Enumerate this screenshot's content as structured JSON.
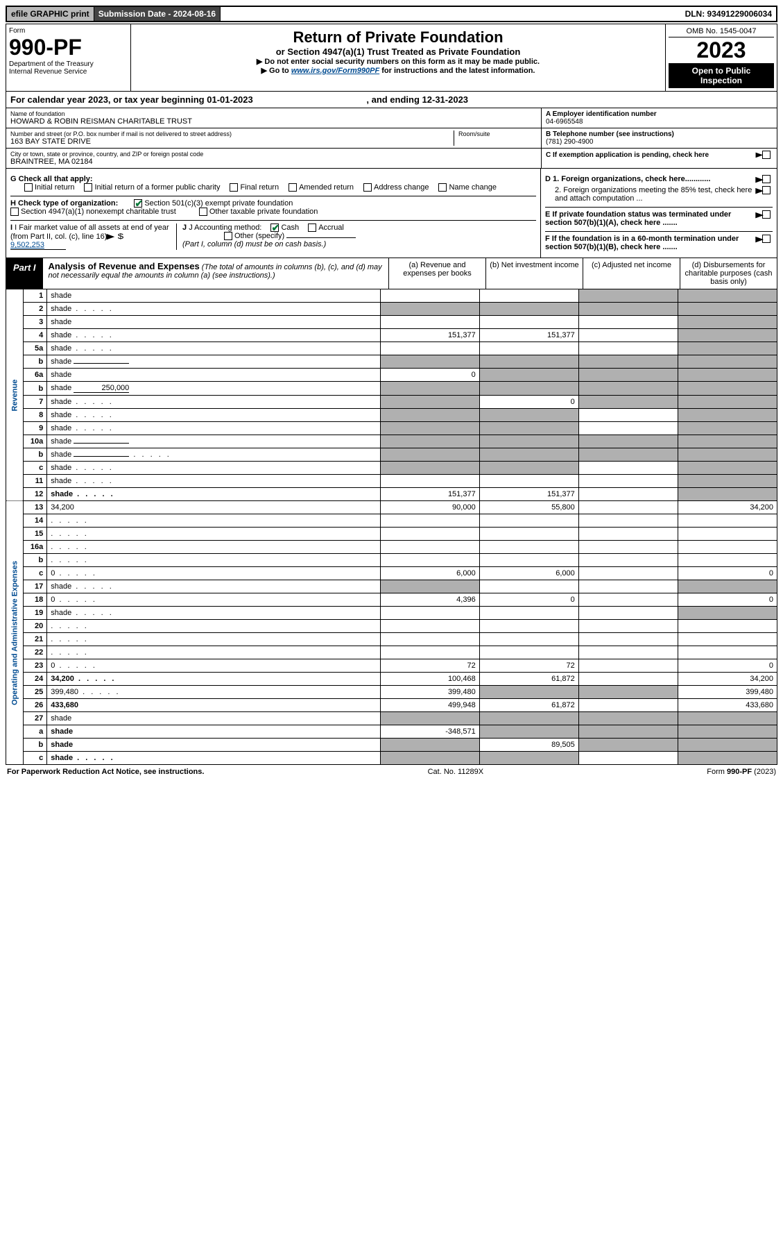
{
  "topbar": {
    "efile": "efile GRAPHIC print",
    "submission": "Submission Date - 2024-08-16",
    "dln": "DLN: 93491229006034"
  },
  "header": {
    "form_word": "Form",
    "form_num": "990-PF",
    "dept": "Department of the Treasury",
    "irs": "Internal Revenue Service",
    "title": "Return of Private Foundation",
    "subtitle": "or Section 4947(a)(1) Trust Treated as Private Foundation",
    "instr1": "▶ Do not enter social security numbers on this form as it may be made public.",
    "instr2_pre": "▶ Go to ",
    "instr2_link": "www.irs.gov/Form990PF",
    "instr2_post": " for instructions and the latest information.",
    "omb": "OMB No. 1545-0047",
    "year": "2023",
    "open": "Open to Public Inspection"
  },
  "cal_year": {
    "pre": "For calendar year 2023, or tax year beginning ",
    "begin": "01-01-2023",
    "mid": " , and ending ",
    "end": "12-31-2023"
  },
  "ident": {
    "name_label": "Name of foundation",
    "name": "HOWARD & ROBIN REISMAN CHARITABLE TRUST",
    "street_label": "Number and street (or P.O. box number if mail is not delivered to street address)",
    "street": "163 BAY STATE DRIVE",
    "room_label": "Room/suite",
    "city_label": "City or town, state or province, country, and ZIP or foreign postal code",
    "city": "BRAINTREE, MA  02184",
    "a_label": "A Employer identification number",
    "a_val": "04-6965548",
    "b_label": "B Telephone number (see instructions)",
    "b_val": "(781) 290-4900",
    "c_label": "C If exemption application is pending, check here"
  },
  "checks": {
    "g_label": "G Check all that apply:",
    "g_opts": [
      "Initial return",
      "Initial return of a former public charity",
      "Final return",
      "Amended return",
      "Address change",
      "Name change"
    ],
    "h_label": "H Check type of organization:",
    "h1": "Section 501(c)(3) exempt private foundation",
    "h2": "Section 4947(a)(1) nonexempt charitable trust",
    "h3": "Other taxable private foundation",
    "i_label": "I Fair market value of all assets at end of year (from Part II, col. (c), line 16)",
    "i_val": "9,502,253",
    "j_label": "J Accounting method:",
    "j_cash": "Cash",
    "j_accrual": "Accrual",
    "j_other": "Other (specify)",
    "j_note": "(Part I, column (d) must be on cash basis.)",
    "d1": "D 1. Foreign organizations, check here............",
    "d2": "2. Foreign organizations meeting the 85% test, check here and attach computation ...",
    "e": "E  If private foundation status was terminated under section 507(b)(1)(A), check here .......",
    "f": "F  If the foundation is in a 60-month termination under section 507(b)(1)(B), check here .......",
    "arrow_dollar": "▶ $"
  },
  "part1": {
    "badge": "Part I",
    "title": "Analysis of Revenue and Expenses",
    "title_note": " (The total of amounts in columns (b), (c), and (d) may not necessarily equal the amounts in column (a) (see instructions).)",
    "col_a": "(a)  Revenue and expenses per books",
    "col_b": "(b)  Net investment income",
    "col_c": "(c)  Adjusted net income",
    "col_d": "(d)  Disbursements for charitable purposes (cash basis only)",
    "side_rev": "Revenue",
    "side_exp": "Operating and Administrative Expenses"
  },
  "lines": [
    {
      "n": "1",
      "d": "shade",
      "a": "",
      "b": "",
      "c": "shade"
    },
    {
      "n": "2",
      "d": "shade",
      "a": "shade",
      "b": "shade",
      "c": "shade",
      "dots": true
    },
    {
      "n": "3",
      "d": "shade",
      "a": "",
      "b": "",
      "c": ""
    },
    {
      "n": "4",
      "d": "shade",
      "a": "151,377",
      "b": "151,377",
      "c": "",
      "dots": true
    },
    {
      "n": "5a",
      "d": "shade",
      "a": "",
      "b": "",
      "c": "",
      "dots": true
    },
    {
      "n": "b",
      "d": "shade",
      "a": "shade",
      "b": "shade",
      "c": "shade",
      "inline": ""
    },
    {
      "n": "6a",
      "d": "shade",
      "a": "0",
      "b": "shade",
      "c": "shade"
    },
    {
      "n": "b",
      "d": "shade",
      "a": "shade",
      "b": "shade",
      "c": "shade",
      "inline": "250,000"
    },
    {
      "n": "7",
      "d": "shade",
      "a": "shade",
      "b": "0",
      "c": "shade",
      "dots": true
    },
    {
      "n": "8",
      "d": "shade",
      "a": "shade",
      "b": "shade",
      "c": "",
      "dots": true
    },
    {
      "n": "9",
      "d": "shade",
      "a": "shade",
      "b": "shade",
      "c": "",
      "dots": true
    },
    {
      "n": "10a",
      "d": "shade",
      "a": "shade",
      "b": "shade",
      "c": "shade",
      "inline": ""
    },
    {
      "n": "b",
      "d": "shade",
      "a": "shade",
      "b": "shade",
      "c": "shade",
      "inline": "",
      "dots": true
    },
    {
      "n": "c",
      "d": "shade",
      "a": "shade",
      "b": "shade",
      "c": "",
      "dots": true
    },
    {
      "n": "11",
      "d": "shade",
      "a": "",
      "b": "",
      "c": "",
      "dots": true
    },
    {
      "n": "12",
      "d": "shade",
      "a": "151,377",
      "b": "151,377",
      "c": "",
      "bold": true,
      "dots": true
    },
    {
      "n": "13",
      "d": "34,200",
      "a": "90,000",
      "b": "55,800",
      "c": ""
    },
    {
      "n": "14",
      "d": "",
      "a": "",
      "b": "",
      "c": "",
      "dots": true
    },
    {
      "n": "15",
      "d": "",
      "a": "",
      "b": "",
      "c": "",
      "dots": true
    },
    {
      "n": "16a",
      "d": "",
      "a": "",
      "b": "",
      "c": "",
      "dots": true
    },
    {
      "n": "b",
      "d": "",
      "a": "",
      "b": "",
      "c": "",
      "dots": true
    },
    {
      "n": "c",
      "d": "0",
      "a": "6,000",
      "b": "6,000",
      "c": "",
      "dots": true
    },
    {
      "n": "17",
      "d": "shade",
      "a": "shade",
      "b": "",
      "c": "",
      "dots": true
    },
    {
      "n": "18",
      "d": "0",
      "a": "4,396",
      "b": "0",
      "c": "",
      "dots": true
    },
    {
      "n": "19",
      "d": "shade",
      "a": "",
      "b": "",
      "c": "",
      "dots": true
    },
    {
      "n": "20",
      "d": "",
      "a": "",
      "b": "",
      "c": "",
      "dots": true
    },
    {
      "n": "21",
      "d": "",
      "a": "",
      "b": "",
      "c": "",
      "dots": true
    },
    {
      "n": "22",
      "d": "",
      "a": "",
      "b": "",
      "c": "",
      "dots": true
    },
    {
      "n": "23",
      "d": "0",
      "a": "72",
      "b": "72",
      "c": "",
      "dots": true
    },
    {
      "n": "24",
      "d": "34,200",
      "a": "100,468",
      "b": "61,872",
      "c": "",
      "bold": true,
      "dots": true
    },
    {
      "n": "25",
      "d": "399,480",
      "a": "399,480",
      "b": "shade",
      "c": "shade",
      "dots": true
    },
    {
      "n": "26",
      "d": "433,680",
      "a": "499,948",
      "b": "61,872",
      "c": "",
      "bold": true
    },
    {
      "n": "27",
      "d": "shade",
      "a": "shade",
      "b": "shade",
      "c": "shade"
    },
    {
      "n": "a",
      "d": "shade",
      "a": "-348,571",
      "b": "shade",
      "c": "shade",
      "bold": true
    },
    {
      "n": "b",
      "d": "shade",
      "a": "shade",
      "b": "89,505",
      "c": "shade",
      "bold": true
    },
    {
      "n": "c",
      "d": "shade",
      "a": "shade",
      "b": "shade",
      "c": "",
      "bold": true,
      "dots": true
    }
  ],
  "footer": {
    "left": "For Paperwork Reduction Act Notice, see instructions.",
    "mid": "Cat. No. 11289X",
    "right": "Form 990-PF (2023)"
  },
  "colors": {
    "link": "#004b91",
    "shade": "#b0b0b0",
    "check": "#0a7a3a"
  }
}
